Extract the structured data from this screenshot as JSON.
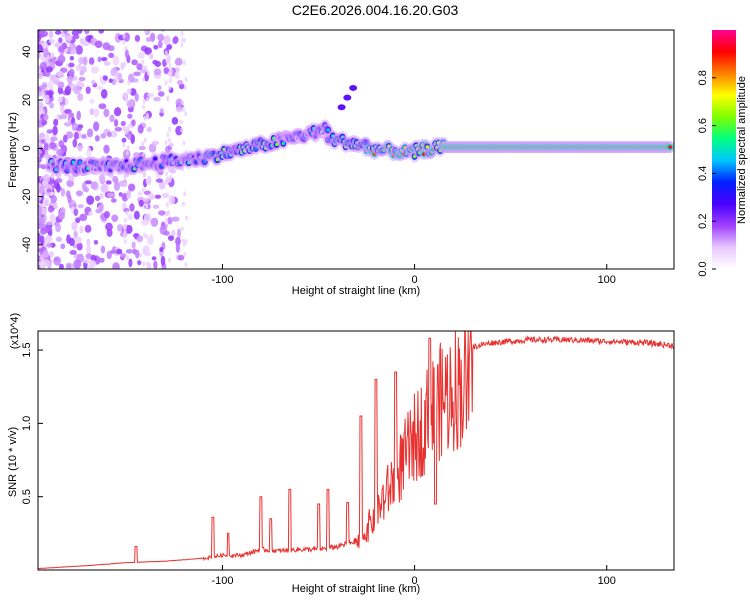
{
  "title": "C2E6.2026.004.16.20.G03",
  "chart_data": [
    {
      "type": "heatmap",
      "xlabel": "Height of straight line (km)",
      "ylabel": "Frequency (Hz)",
      "xlim": [
        -196,
        135
      ],
      "ylim": [
        -50,
        49
      ],
      "xticks": [
        -100,
        0,
        100
      ],
      "yticks": [
        -40,
        -20,
        0,
        20,
        40
      ],
      "colorbar": {
        "label": "Normalized spectral amplitude",
        "range": [
          0,
          1
        ],
        "ticks": [
          0.0,
          0.2,
          0.4,
          0.6,
          0.8
        ],
        "colors": [
          "#ffffff",
          "#e8c8ff",
          "#a040ff",
          "#4800ff",
          "#0020ff",
          "#00c8ff",
          "#00ff80",
          "#80ff00",
          "#ffff00",
          "#ff8000",
          "#ff0000",
          "#ff0090"
        ]
      },
      "segments": [
        {
          "x0": -190,
          "x1": -160,
          "f0": -7,
          "f1": -8,
          "amp": 0.35
        },
        {
          "x0": -160,
          "x1": -110,
          "f0": -8,
          "f1": -4,
          "amp": 0.4
        },
        {
          "x0": -110,
          "x1": -70,
          "f0": -4,
          "f1": 3,
          "amp": 0.5
        },
        {
          "x0": -70,
          "x1": -45,
          "f0": 3,
          "f1": 8,
          "amp": 0.35
        },
        {
          "x0": -45,
          "x1": -25,
          "f0": 4,
          "f1": 1,
          "amp": 0.55
        },
        {
          "x0": -25,
          "x1": 0,
          "f0": 0,
          "f1": -2,
          "amp": 0.7
        },
        {
          "x0": 0,
          "x1": 15,
          "f0": -1,
          "f1": 0.5,
          "amp": 0.75
        },
        {
          "x0": 15,
          "x1": 133,
          "f0": 0.5,
          "f1": 0.5,
          "amp": 0.95
        }
      ],
      "branch": {
        "x": [
          -38,
          -35,
          -32
        ],
        "f": [
          17,
          21,
          25
        ]
      }
    },
    {
      "type": "line",
      "xlabel": "Height of straight line (km)",
      "ylabel": "SNR (10 * v/v)",
      "multiplier": "(x10^4)",
      "xlim": [
        -196,
        135
      ],
      "ylim": [
        0,
        1.63
      ],
      "xticks": [
        -100,
        0,
        100
      ],
      "yticks": [
        0.5,
        1.0,
        1.5
      ],
      "color": "#e8312f",
      "envelope": {
        "x": [
          -196,
          -170,
          -150,
          -130,
          -110,
          -100,
          -90,
          -80,
          -70,
          -60,
          -50,
          -40,
          -30,
          -20,
          -10,
          0,
          10,
          20,
          30,
          40,
          60,
          80,
          100,
          120,
          135
        ],
        "y": [
          0.01,
          0.03,
          0.05,
          0.06,
          0.08,
          0.1,
          0.1,
          0.14,
          0.13,
          0.14,
          0.14,
          0.16,
          0.2,
          0.45,
          0.75,
          1.05,
          1.3,
          1.45,
          1.52,
          1.55,
          1.57,
          1.57,
          1.56,
          1.55,
          1.53
        ]
      },
      "spikes": {
        "x": [
          -145,
          -105,
          -97,
          -80,
          -75,
          -65,
          -50,
          -45,
          -35,
          -28,
          -20,
          -10,
          8,
          11
        ],
        "y": [
          0.16,
          0.36,
          0.25,
          0.5,
          0.35,
          0.55,
          0.45,
          0.55,
          0.46,
          1.05,
          1.3,
          1.35,
          1.58,
          0.45
        ]
      }
    }
  ]
}
